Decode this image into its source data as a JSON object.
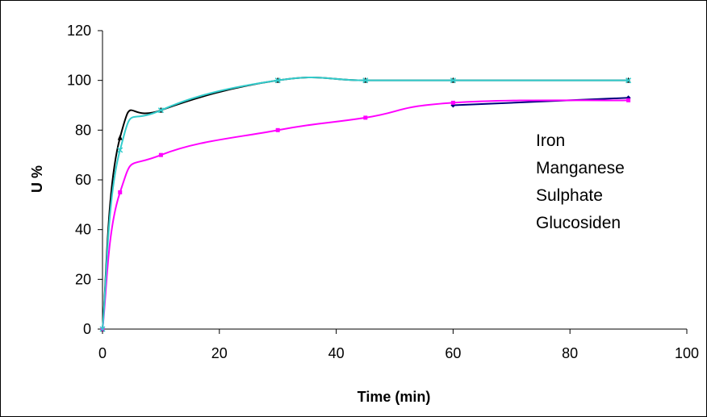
{
  "chart_data": {
    "type": "line",
    "xlabel": "Time (min)",
    "ylabel": "U %",
    "xlim": [
      0,
      100
    ],
    "ylim": [
      0,
      120
    ],
    "xticks": [
      0,
      20,
      40,
      60,
      80,
      100
    ],
    "yticks": [
      0,
      20,
      40,
      60,
      80,
      100,
      120
    ],
    "xtick_labels": [
      "0",
      "20",
      "40",
      "60",
      "80",
      "100"
    ],
    "ytick_labels": [
      "0",
      "20",
      "40",
      "60",
      "80",
      "100",
      "120"
    ],
    "grid": false,
    "legend_position": "right",
    "series": [
      {
        "name": "Iron",
        "color": "#000000",
        "marker": "triangle",
        "points": [
          [
            0,
            0
          ],
          [
            3,
            77
          ],
          [
            10,
            88
          ],
          [
            30,
            100
          ],
          [
            45,
            100
          ],
          [
            60,
            100
          ],
          [
            90,
            100
          ]
        ]
      },
      {
        "name": "Manganese",
        "color": "#00007f",
        "marker": "diamond",
        "points": [
          [
            60,
            90
          ],
          [
            90,
            93
          ]
        ]
      },
      {
        "name": "Sulphate",
        "color": "#ff00ff",
        "marker": "square",
        "points": [
          [
            0,
            0
          ],
          [
            3,
            55
          ],
          [
            10,
            70
          ],
          [
            30,
            80
          ],
          [
            45,
            85
          ],
          [
            60,
            91
          ],
          [
            90,
            92
          ]
        ]
      },
      {
        "name": "Glucosiden",
        "color": "#33cccc",
        "marker": "x",
        "points": [
          [
            0,
            0
          ],
          [
            3,
            72
          ],
          [
            10,
            88
          ],
          [
            30,
            100
          ],
          [
            45,
            100
          ],
          [
            60,
            100
          ],
          [
            90,
            100
          ]
        ]
      }
    ]
  }
}
